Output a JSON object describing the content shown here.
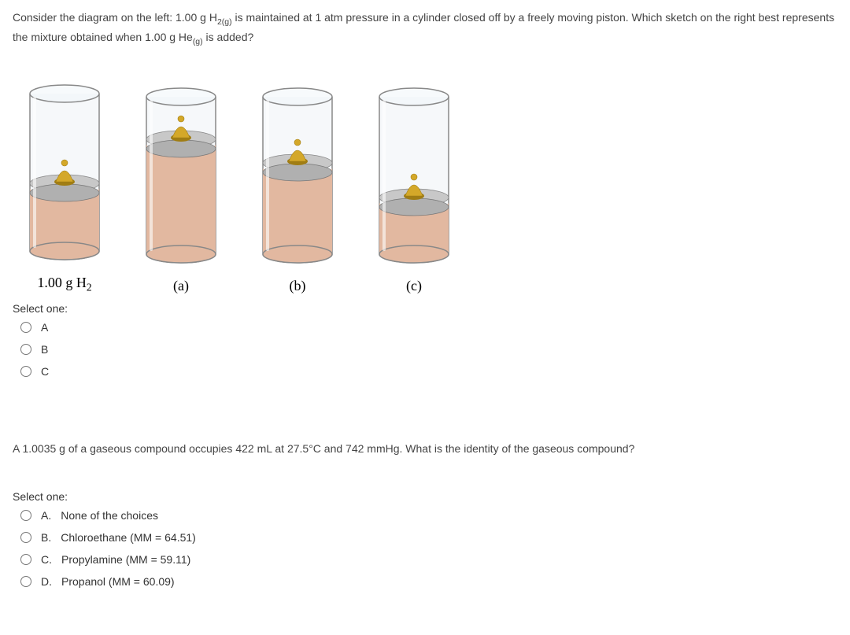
{
  "q1": {
    "text_pre": "Consider the diagram on the left: 1.00 g H",
    "sub1": "2(g)",
    "text_mid": " is maintained at 1 atm pressure in a cylinder closed off by a freely moving piston. Which sketch on the right best represents the mixture obtained when 1.00 g He",
    "sub2": "(g)",
    "text_post": " is added?",
    "cylinders": {
      "left": {
        "label_pre": "1.00 g H",
        "label_sub": "2",
        "piston_h": 0.4
      },
      "a": {
        "label": "(a)",
        "piston_h": 0.7
      },
      "b": {
        "label": "(b)",
        "piston_h": 0.55
      },
      "c": {
        "label": "(c)",
        "piston_h": 0.33
      }
    },
    "colors": {
      "gas_fill": "#e2b8a0",
      "gas_top": "#d4a68e",
      "glass_stroke": "#888",
      "piston_light": "#dcdcdc",
      "piston_dark": "#9a9a9a",
      "weight": "#d4a829",
      "weight_shadow": "#a07d14"
    },
    "select_one": "Select one:",
    "options": [
      {
        "label": "A"
      },
      {
        "label": "B"
      },
      {
        "label": "C"
      }
    ]
  },
  "q2": {
    "text": "A 1.0035 g of a gaseous compound occupies 422 mL at 27.5°C and 742 mmHg. What is the identity of the gaseous compound?",
    "select_one": "Select one:",
    "options": [
      {
        "letter": "A.",
        "label": "None of the choices"
      },
      {
        "letter": "B.",
        "label": "Chloroethane (MM = 64.51)"
      },
      {
        "letter": "C.",
        "label": "Propylamine (MM = 59.11)"
      },
      {
        "letter": "D.",
        "label": "Propanol (MM = 60.09)"
      }
    ]
  }
}
